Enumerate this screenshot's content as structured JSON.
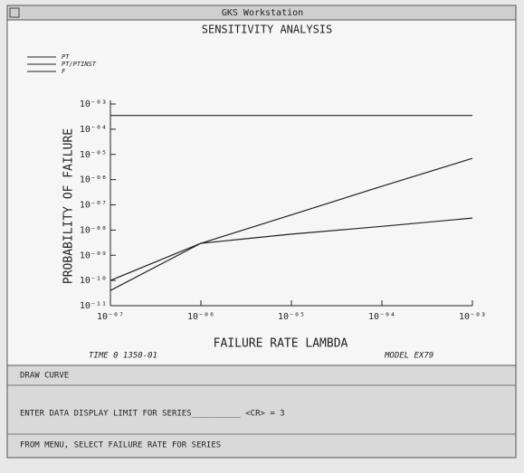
{
  "window": {
    "title": "GKS Workstation"
  },
  "chart_data": {
    "type": "line",
    "title": "SENSITIVITY ANALYSIS",
    "x_label": "FAILURE RATE LAMBDA",
    "y_label": "PROBABILITY OF FAILURE",
    "x": [
      1e-07,
      1e-06,
      1e-05,
      0.0001,
      0.001
    ],
    "series": [
      {
        "name": "PT",
        "color": "#222222",
        "values": [
          0.00035,
          0.00035,
          0.00035,
          0.00035,
          0.00035
        ]
      },
      {
        "name": "PT/PTINST",
        "color": "#222222",
        "values": [
          4e-11,
          3e-09,
          4e-08,
          5.5e-07,
          7e-06
        ]
      },
      {
        "name": "F",
        "color": "#222222",
        "values": [
          1e-10,
          3e-09,
          6.9e-09,
          1.4e-08,
          3e-08
        ]
      }
    ],
    "xlog": true,
    "ylog": true,
    "xlim": [
      1e-07,
      0.001
    ],
    "ylim": [
      1e-11,
      0.001
    ],
    "xticks": [
      {
        "value": 1e-07,
        "label": "10⁻⁰⁷"
      },
      {
        "value": 1e-06,
        "label": "10⁻⁰⁶"
      },
      {
        "value": 1e-05,
        "label": "10⁻⁰⁵"
      },
      {
        "value": 0.0001,
        "label": "10⁻⁰⁴"
      },
      {
        "value": 0.001,
        "label": "10⁻⁰³"
      }
    ],
    "yticks": [
      {
        "value": 0.001,
        "label": "10⁻⁰³"
      },
      {
        "value": 0.0001,
        "label": "10⁻⁰⁴"
      },
      {
        "value": 1e-05,
        "label": "10⁻⁰⁵"
      },
      {
        "value": 1e-06,
        "label": "10⁻⁰⁶"
      },
      {
        "value": 1e-07,
        "label": "10⁻⁰⁷"
      },
      {
        "value": 1e-08,
        "label": "10⁻⁰⁸"
      },
      {
        "value": 1e-09,
        "label": "10⁻⁰⁹"
      },
      {
        "value": 1e-10,
        "label": "10⁻¹⁰"
      },
      {
        "value": 1e-11,
        "label": "10⁻¹¹"
      }
    ],
    "legend": "upper-left"
  },
  "status": {
    "time": "TIME  0 1350-01",
    "model": "MODEL   EX79"
  },
  "panel": {
    "lines": [
      "DRAW CURVE",
      "ENTER DATA DISPLAY LIMIT FOR SERIES__________ <CR> = 3",
      "FROM MENU, SELECT FAILURE RATE FOR SERIES"
    ]
  }
}
